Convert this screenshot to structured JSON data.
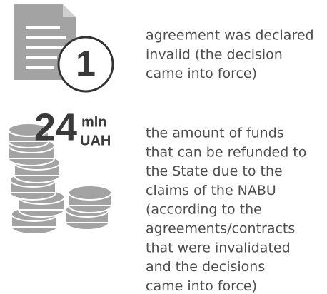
{
  "items": [
    {
      "icon_number": "1",
      "text_lines": [
        "agreement was declared",
        "invalid (the decision",
        "came into force)"
      ]
    },
    {
      "icon_number": "24",
      "icon_unit_lines": [
        "mln",
        "UAH"
      ],
      "text_lines": [
        "the amount of funds",
        "that can be refunded to",
        "the State due to the",
        "claims of the NABU",
        "(according to the",
        "agreements/contracts",
        "that were invalidated",
        "and the decisions",
        "came into force)"
      ]
    }
  ]
}
